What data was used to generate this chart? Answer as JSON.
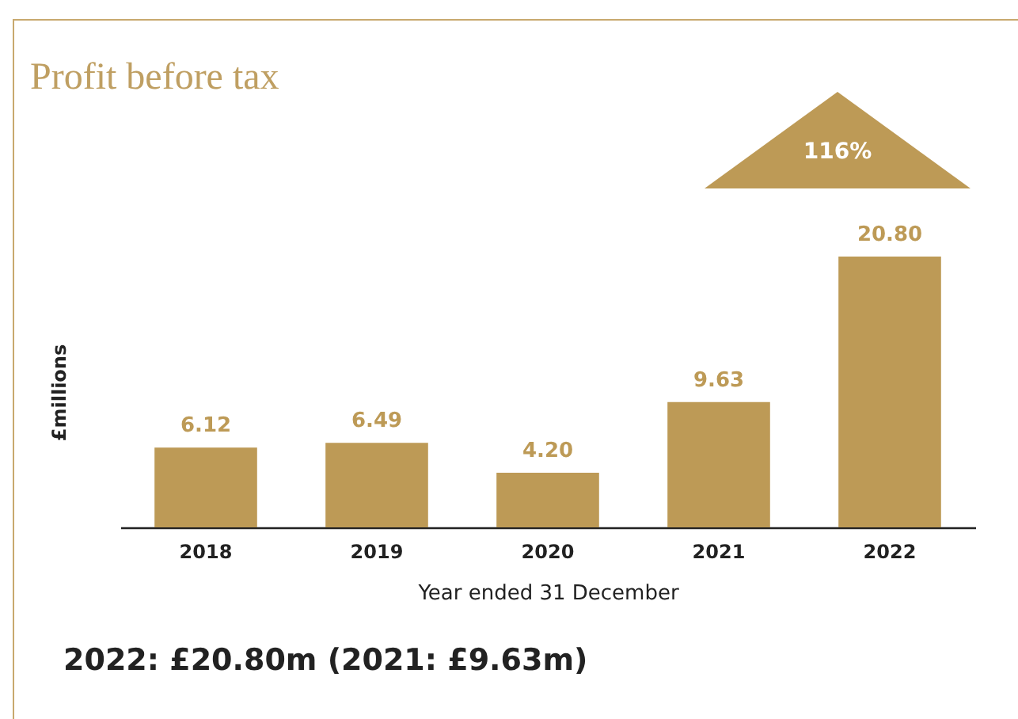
{
  "chart_data": {
    "type": "bar",
    "title": "Profit before tax",
    "xlabel": "Year ended 31 December",
    "ylabel": "£millions",
    "categories": [
      "2018",
      "2019",
      "2020",
      "2021",
      "2022"
    ],
    "values": [
      6.12,
      6.49,
      4.2,
      9.63,
      20.8
    ],
    "color": "#bd9a56",
    "value_labels": [
      "6.12",
      "6.49",
      "4.20",
      "9.63",
      "20.80"
    ],
    "annotations": [
      "116%",
      "2022: £20.80m (2021: £9.63m)"
    ]
  }
}
